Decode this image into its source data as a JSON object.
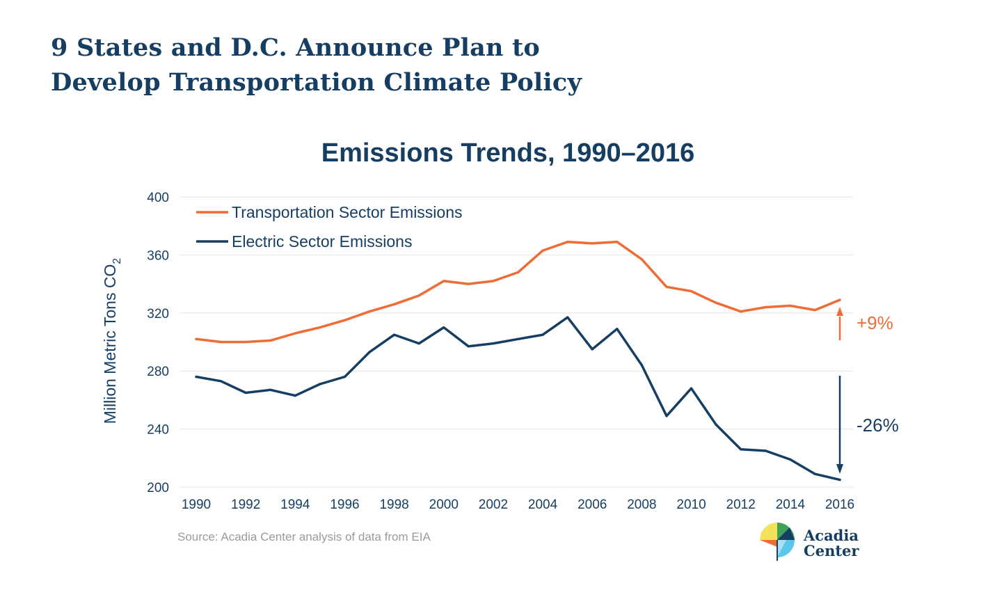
{
  "header": {
    "line1": "9 States and D.C. Announce Plan to",
    "line2": "Develop Transportation Climate Policy"
  },
  "chart_data": {
    "type": "line",
    "title": "Emissions Trends, 1990–2016",
    "ylabel": "Million Metric Tons CO",
    "ylabel_sub": "2",
    "xlabel": "",
    "x": [
      1990,
      1991,
      1992,
      1993,
      1994,
      1995,
      1996,
      1997,
      1998,
      1999,
      2000,
      2001,
      2002,
      2003,
      2004,
      2005,
      2006,
      2007,
      2008,
      2009,
      2010,
      2011,
      2012,
      2013,
      2014,
      2015,
      2016
    ],
    "x_ticks": [
      "1990",
      "1992",
      "1994",
      "1996",
      "1998",
      "2000",
      "2002",
      "2004",
      "2006",
      "2008",
      "2010",
      "2012",
      "2014",
      "2016"
    ],
    "y_ticks": [
      "200",
      "240",
      "280",
      "320",
      "360",
      "400"
    ],
    "ylim": [
      200,
      400
    ],
    "grid": "horizontal",
    "legend_position": "top-left",
    "series": [
      {
        "name": "Transportation Sector Emissions",
        "color": "#ee6d36",
        "values": [
          302,
          300,
          300,
          301,
          306,
          310,
          315,
          321,
          326,
          332,
          342,
          340,
          342,
          348,
          363,
          369,
          368,
          369,
          357,
          338,
          335,
          327,
          321,
          324,
          325,
          322,
          329
        ]
      },
      {
        "name": "Electric Sector Emissions",
        "color": "#163e62",
        "values": [
          276,
          273,
          265,
          267,
          263,
          271,
          276,
          293,
          305,
          299,
          310,
          297,
          299,
          302,
          305,
          317,
          295,
          309,
          284,
          249,
          268,
          243,
          226,
          225,
          219,
          209,
          205
        ]
      }
    ],
    "annotations": [
      {
        "label": "+9%",
        "color": "#ee6d36",
        "direction": "up"
      },
      {
        "label": "-26%",
        "color": "#163e62",
        "direction": "down"
      }
    ],
    "source": "Source: Acadia Center analysis of data from EIA"
  },
  "logo": {
    "line1": "Acadia",
    "line2": "Center",
    "colors": [
      "#f2e35a",
      "#ee6d36",
      "#3fa35a",
      "#163e62",
      "#5cc7ea",
      "#a8e0f4"
    ]
  }
}
